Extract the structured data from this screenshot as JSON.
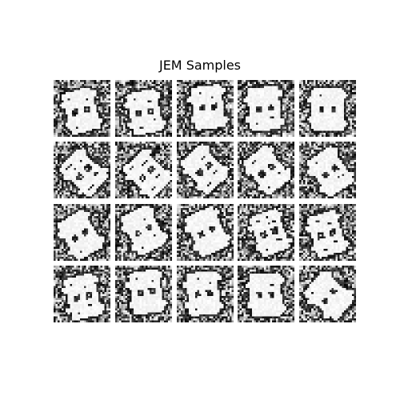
{
  "figure": {
    "title": "JEM Samples"
  },
  "samples": {
    "rows": 4,
    "cols": 5,
    "colormap": "grayscale",
    "background_color": "#ffffff"
  }
}
